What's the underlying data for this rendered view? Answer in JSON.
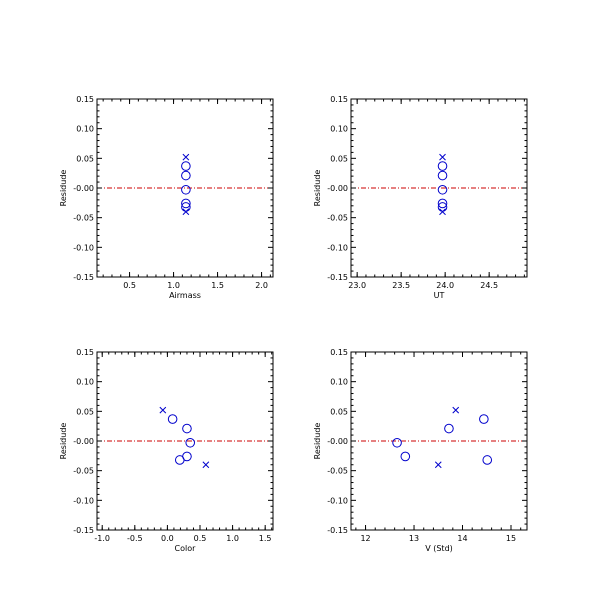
{
  "colors": {
    "axis": "#000000",
    "marker": "#0000cc",
    "zero_line": "#cc0000"
  },
  "chart_data": [
    {
      "type": "scatter",
      "xlabel": "Airmass",
      "ylabel": "Residude",
      "xlim": [
        0.13,
        2.13
      ],
      "ylim": [
        -0.15,
        0.15
      ],
      "xticks": [
        0.5,
        1.0,
        1.5,
        2.0
      ],
      "xtick_labels": [
        "0.5",
        "1.0",
        "1.5",
        "2.0"
      ],
      "yticks": [
        -0.15,
        -0.1,
        -0.05,
        0.0,
        0.05,
        0.1,
        0.15
      ],
      "ytick_labels": [
        "-0.15",
        "-0.10",
        "-0.05",
        "-0.00",
        "0.05",
        "0.10",
        "0.15"
      ],
      "zero_line": 0,
      "series": [
        {
          "marker": "circle",
          "x": [
            1.14,
            1.14,
            1.14,
            1.14,
            1.14
          ],
          "y": [
            0.037,
            0.021,
            -0.003,
            -0.026,
            -0.032
          ]
        },
        {
          "marker": "cross",
          "x": [
            1.14,
            1.14
          ],
          "y": [
            0.052,
            -0.04
          ]
        }
      ]
    },
    {
      "type": "scatter",
      "xlabel": "UT",
      "ylabel": "Residude",
      "xlim": [
        22.93,
        24.93
      ],
      "ylim": [
        -0.15,
        0.15
      ],
      "xticks": [
        23.0,
        23.5,
        24.0,
        24.5
      ],
      "xtick_labels": [
        "23.0",
        "23.5",
        "24.0",
        "24.5"
      ],
      "yticks": [
        -0.15,
        -0.1,
        -0.05,
        0.0,
        0.05,
        0.1,
        0.15
      ],
      "ytick_labels": [
        "-0.15",
        "-0.10",
        "-0.05",
        "-0.00",
        "0.05",
        "0.10",
        "0.15"
      ],
      "zero_line": 0,
      "series": [
        {
          "marker": "circle",
          "x": [
            23.97,
            23.97,
            23.97,
            23.97,
            23.97
          ],
          "y": [
            0.037,
            0.021,
            -0.003,
            -0.026,
            -0.032
          ]
        },
        {
          "marker": "cross",
          "x": [
            23.97,
            23.97
          ],
          "y": [
            0.052,
            -0.04
          ]
        }
      ]
    },
    {
      "type": "scatter",
      "xlabel": "Color",
      "ylabel": "Residude",
      "xlim": [
        -1.08,
        1.62
      ],
      "ylim": [
        -0.15,
        0.15
      ],
      "xticks": [
        -1.0,
        -0.5,
        0.0,
        0.5,
        1.0,
        1.5
      ],
      "xtick_labels": [
        "-1.0",
        "-0.5",
        "0.0",
        "0.5",
        "1.0",
        "1.5"
      ],
      "yticks": [
        -0.15,
        -0.1,
        -0.05,
        0.0,
        0.05,
        0.1,
        0.15
      ],
      "ytick_labels": [
        "-0.15",
        "-0.10",
        "-0.05",
        "-0.00",
        "0.05",
        "0.10",
        "0.15"
      ],
      "zero_line": 0,
      "series": [
        {
          "marker": "circle",
          "x": [
            0.08,
            0.3,
            0.35,
            0.3,
            0.19
          ],
          "y": [
            0.037,
            0.021,
            -0.003,
            -0.026,
            -0.032
          ]
        },
        {
          "marker": "cross",
          "x": [
            -0.07,
            0.59
          ],
          "y": [
            0.052,
            -0.04
          ]
        }
      ]
    },
    {
      "type": "scatter",
      "xlabel": "V (Std)",
      "ylabel": "Residude",
      "xlim": [
        11.7,
        15.33
      ],
      "ylim": [
        -0.15,
        0.15
      ],
      "xticks": [
        12,
        13,
        14,
        15
      ],
      "xtick_labels": [
        "12",
        "13",
        "14",
        "15"
      ],
      "yticks": [
        -0.15,
        -0.1,
        -0.05,
        0.0,
        0.05,
        0.1,
        0.15
      ],
      "ytick_labels": [
        "-0.15",
        "-0.10",
        "-0.05",
        "-0.00",
        "0.05",
        "0.10",
        "0.15"
      ],
      "zero_line": 0,
      "series": [
        {
          "marker": "circle",
          "x": [
            12.65,
            12.82,
            13.72,
            14.44,
            14.51
          ],
          "y": [
            -0.003,
            -0.026,
            0.021,
            0.037,
            -0.032
          ]
        },
        {
          "marker": "cross",
          "x": [
            13.5,
            13.86
          ],
          "y": [
            -0.04,
            0.052
          ]
        }
      ]
    }
  ]
}
